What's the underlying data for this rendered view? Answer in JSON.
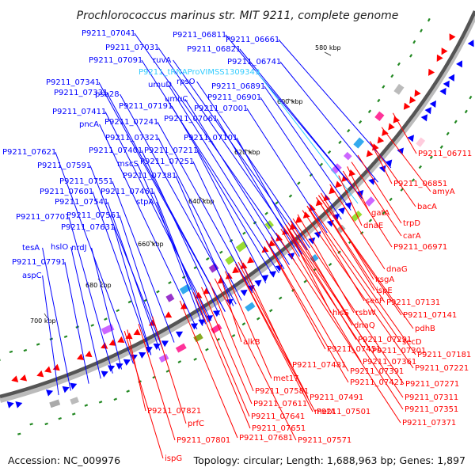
{
  "title": "Prochlorococcus marinus str. MIT 9211, complete genome",
  "accession": "Accession: NC_009976",
  "summary": "Topology: circular; Length: 1,688,963 bp; Genes: 1,897",
  "colors": {
    "forward": "#0000ff",
    "reverse": "#ff0000",
    "trna": "#33ccff",
    "backbone": "#555555"
  },
  "ticks": [
    {
      "text": "580 kbp"
    },
    {
      "text": "600 kbp"
    },
    {
      "text": "620 kbp"
    },
    {
      "text": "640 kbp"
    },
    {
      "text": "660 kbp"
    },
    {
      "text": "680 kbp"
    },
    {
      "text": "700 kbp"
    }
  ],
  "forward_labels": [
    {
      "text": "P9211_07041",
      "color": "#0000ff"
    },
    {
      "text": "P9211_06811",
      "color": "#0000ff"
    },
    {
      "text": "P9211_06661",
      "color": "#0000ff"
    },
    {
      "text": "P9211_07031",
      "color": "#0000ff"
    },
    {
      "text": "P9211_06821",
      "color": "#0000ff"
    },
    {
      "text": "P9211_07091",
      "color": "#0000ff"
    },
    {
      "text": "ruvA",
      "color": "#0000ff"
    },
    {
      "text": "P9211_06741",
      "color": "#0000ff"
    },
    {
      "text": "P9211_tRNAProVIMSS1309349",
      "color": "#33ccff"
    },
    {
      "text": "rpsO",
      "color": "#0000ff"
    },
    {
      "text": "umuD",
      "color": "#0000ff"
    },
    {
      "text": "P9211_06891",
      "color": "#0000ff"
    },
    {
      "text": "P9211_07341",
      "color": "#0000ff"
    },
    {
      "text": "P9211_07331",
      "color": "#0000ff"
    },
    {
      "text": "psb28",
      "color": "#0000ff"
    },
    {
      "text": "umuC",
      "color": "#0000ff"
    },
    {
      "text": "P9211_06901",
      "color": "#0000ff"
    },
    {
      "text": "P9211_07191",
      "color": "#0000ff"
    },
    {
      "text": "P9211_07001",
      "color": "#0000ff"
    },
    {
      "text": "P9211_07411",
      "color": "#0000ff"
    },
    {
      "text": "P9211_07061",
      "color": "#0000ff"
    },
    {
      "text": "pncA",
      "color": "#0000ff"
    },
    {
      "text": "P9211_07241",
      "color": "#0000ff"
    },
    {
      "text": "P9211_07321",
      "color": "#0000ff"
    },
    {
      "text": "P9211_07101",
      "color": "#0000ff"
    },
    {
      "text": "P9211_07621",
      "color": "#0000ff"
    },
    {
      "text": "P9211_07401",
      "color": "#0000ff"
    },
    {
      "text": "P9211_07211",
      "color": "#0000ff"
    },
    {
      "text": "P9211_07591",
      "color": "#0000ff"
    },
    {
      "text": "mscS",
      "color": "#0000ff"
    },
    {
      "text": "P9211_07251",
      "color": "#0000ff"
    },
    {
      "text": "P9211_07551",
      "color": "#0000ff"
    },
    {
      "text": "P9211_07381",
      "color": "#0000ff"
    },
    {
      "text": "P9211_07601",
      "color": "#0000ff"
    },
    {
      "text": "P9211_07461",
      "color": "#0000ff"
    },
    {
      "text": "P9211_07541",
      "color": "#0000ff"
    },
    {
      "text": "stpA",
      "color": "#0000ff"
    },
    {
      "text": "P9211_07701",
      "color": "#0000ff"
    },
    {
      "text": "P9211_07561",
      "color": "#0000ff"
    },
    {
      "text": "P9211_07631",
      "color": "#0000ff"
    },
    {
      "text": "tesA",
      "color": "#0000ff"
    },
    {
      "text": "hslO",
      "color": "#0000ff"
    },
    {
      "text": "nrdJ",
      "color": "#0000ff"
    },
    {
      "text": "P9211_07791",
      "color": "#0000ff"
    },
    {
      "text": "aspC",
      "color": "#0000ff"
    }
  ],
  "reverse_labels": [
    {
      "text": "P9211_06711"
    },
    {
      "text": "P9211_06851"
    },
    {
      "text": "amyA"
    },
    {
      "text": "bacA"
    },
    {
      "text": "gatA"
    },
    {
      "text": "trpD"
    },
    {
      "text": "dnaE"
    },
    {
      "text": "carA"
    },
    {
      "text": "P9211_06971"
    },
    {
      "text": "dnaG"
    },
    {
      "text": "ksgA"
    },
    {
      "text": "ispE"
    },
    {
      "text": "secF"
    },
    {
      "text": "P9211_07131"
    },
    {
      "text": "hisS"
    },
    {
      "text": "rsbW"
    },
    {
      "text": "P9211_07141"
    },
    {
      "text": "dnaQ"
    },
    {
      "text": "pdhB"
    },
    {
      "text": "P9211_07291"
    },
    {
      "text": "secD"
    },
    {
      "text": "P9211_07451"
    },
    {
      "text": "P9211_07301"
    },
    {
      "text": "P9211_07181"
    },
    {
      "text": "alkB"
    },
    {
      "text": "P9211_07361"
    },
    {
      "text": "P9211_07481"
    },
    {
      "text": "P9211_07221"
    },
    {
      "text": "P9211_07391"
    },
    {
      "text": "met17"
    },
    {
      "text": "P9211_07421"
    },
    {
      "text": "P9211_07271"
    },
    {
      "text": "P9211_07581"
    },
    {
      "text": "P9211_07491"
    },
    {
      "text": "P9211_07311"
    },
    {
      "text": "P9211_07611"
    },
    {
      "text": "metA"
    },
    {
      "text": "P9211_07351"
    },
    {
      "text": "P9211_07821"
    },
    {
      "text": "P9211_07501"
    },
    {
      "text": "P9211_07641"
    },
    {
      "text": "P9211_07371"
    },
    {
      "text": "prfC"
    },
    {
      "text": "P9211_07651"
    },
    {
      "text": "P9211_07801"
    },
    {
      "text": "P9211_07681"
    },
    {
      "text": "P9211_07571"
    },
    {
      "text": "ispG"
    }
  ]
}
